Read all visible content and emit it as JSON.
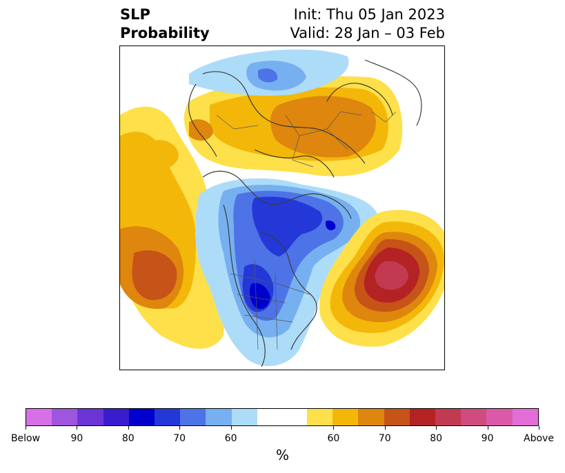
{
  "header": {
    "title_line1": "SLP",
    "title_line2": "Probability",
    "init": "Init: Thu 05 Jan 2023",
    "valid": "Valid: 28 Jan – 03 Feb"
  },
  "map": {
    "projection": "north-polar-stereographic",
    "anomalies": [
      {
        "region": "western-russia-siberia",
        "category": "above",
        "max_percent": 70
      },
      {
        "region": "northeast-pacific",
        "category": "above",
        "max_percent": 70
      },
      {
        "region": "north-atlantic",
        "category": "above",
        "max_percent": 85
      },
      {
        "region": "arctic-ocean-canada",
        "category": "below",
        "max_percent": 85
      },
      {
        "region": "central-north-america",
        "category": "below",
        "max_percent": 85
      },
      {
        "region": "scandinavia-barents",
        "category": "below",
        "max_percent": 70
      }
    ]
  },
  "colorbar": {
    "label": "%",
    "below_colors": [
      "#d670e6",
      "#9f56de",
      "#6b34d6",
      "#3a1ccf",
      "#0000cd",
      "#2438d8",
      "#4d73e6",
      "#76b0f0",
      "#addcf8"
    ],
    "neutral_color": "#ffffff",
    "above_colors": [
      "#fde04a",
      "#f3b70a",
      "#de860d",
      "#c65317",
      "#b42223",
      "#c23a52",
      "#cf4c7e",
      "#db5aa8",
      "#e26ed9"
    ],
    "tick_labels": [
      "Below",
      "90",
      "80",
      "70",
      "60",
      "60",
      "70",
      "80",
      "90",
      "Above"
    ]
  }
}
